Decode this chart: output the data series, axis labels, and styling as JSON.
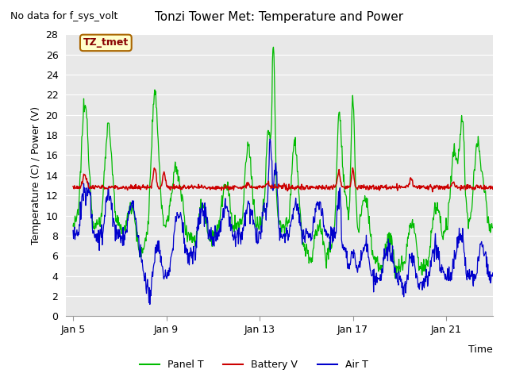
{
  "title": "Tonzi Tower Met: Temperature and Power",
  "no_data_text": "No data for f_sys_volt",
  "ylabel": "Temperature (C) / Power (V)",
  "time_label": "Time",
  "ylim": [
    0,
    28
  ],
  "yticks": [
    0,
    2,
    4,
    6,
    8,
    10,
    12,
    14,
    16,
    18,
    20,
    22,
    24,
    26,
    28
  ],
  "xtick_labels": [
    "Jan 5",
    "Jan 9",
    "Jan 13",
    "Jan 17",
    "Jan 21"
  ],
  "xtick_positions": [
    0,
    4,
    8,
    12,
    16
  ],
  "legend_items": [
    {
      "label": "Panel T",
      "color": "#00bb00"
    },
    {
      "label": "Battery V",
      "color": "#cc0000"
    },
    {
      "label": "Air T",
      "color": "#0000cc"
    }
  ],
  "annotation_text": "TZ_tmet",
  "annotation_bg": "#ffffcc",
  "annotation_border": "#aa6600",
  "plot_bg_color": "#e8e8e8",
  "panel_t_color": "#00bb00",
  "battery_v_color": "#cc0000",
  "air_t_color": "#0000cc",
  "title_fontsize": 11,
  "axis_fontsize": 9,
  "tick_fontsize": 9
}
